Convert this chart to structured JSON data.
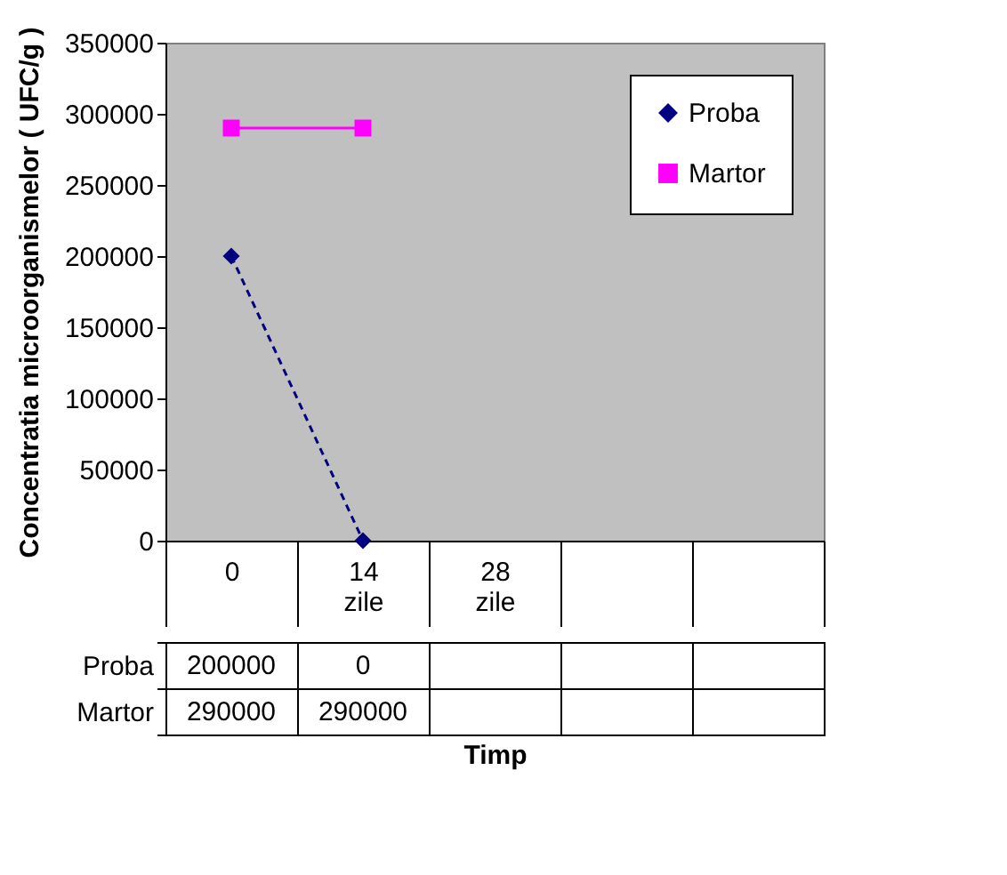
{
  "chart_data": {
    "type": "line",
    "xlabel": "Timp",
    "ylabel": "Concentratia microorganismelor ( UFC/g )",
    "categories": [
      "0",
      "14 zile",
      "28 zile",
      null,
      null
    ],
    "ylim": [
      0,
      350000
    ],
    "yticks": [
      0,
      50000,
      100000,
      150000,
      200000,
      250000,
      300000,
      350000
    ],
    "grid": false,
    "legend": "top right",
    "data_labels": true,
    "series": [
      {
        "name": "Proba",
        "color": "#000080",
        "values": [
          200000,
          0,
          null,
          null,
          null
        ],
        "marker": "diamond",
        "line_style": "dashed"
      },
      {
        "name": "Martor",
        "color": "#ff00ff",
        "values": [
          290000,
          290000,
          null,
          null,
          null
        ],
        "marker": "square",
        "line_style": "solid"
      }
    ]
  }
}
